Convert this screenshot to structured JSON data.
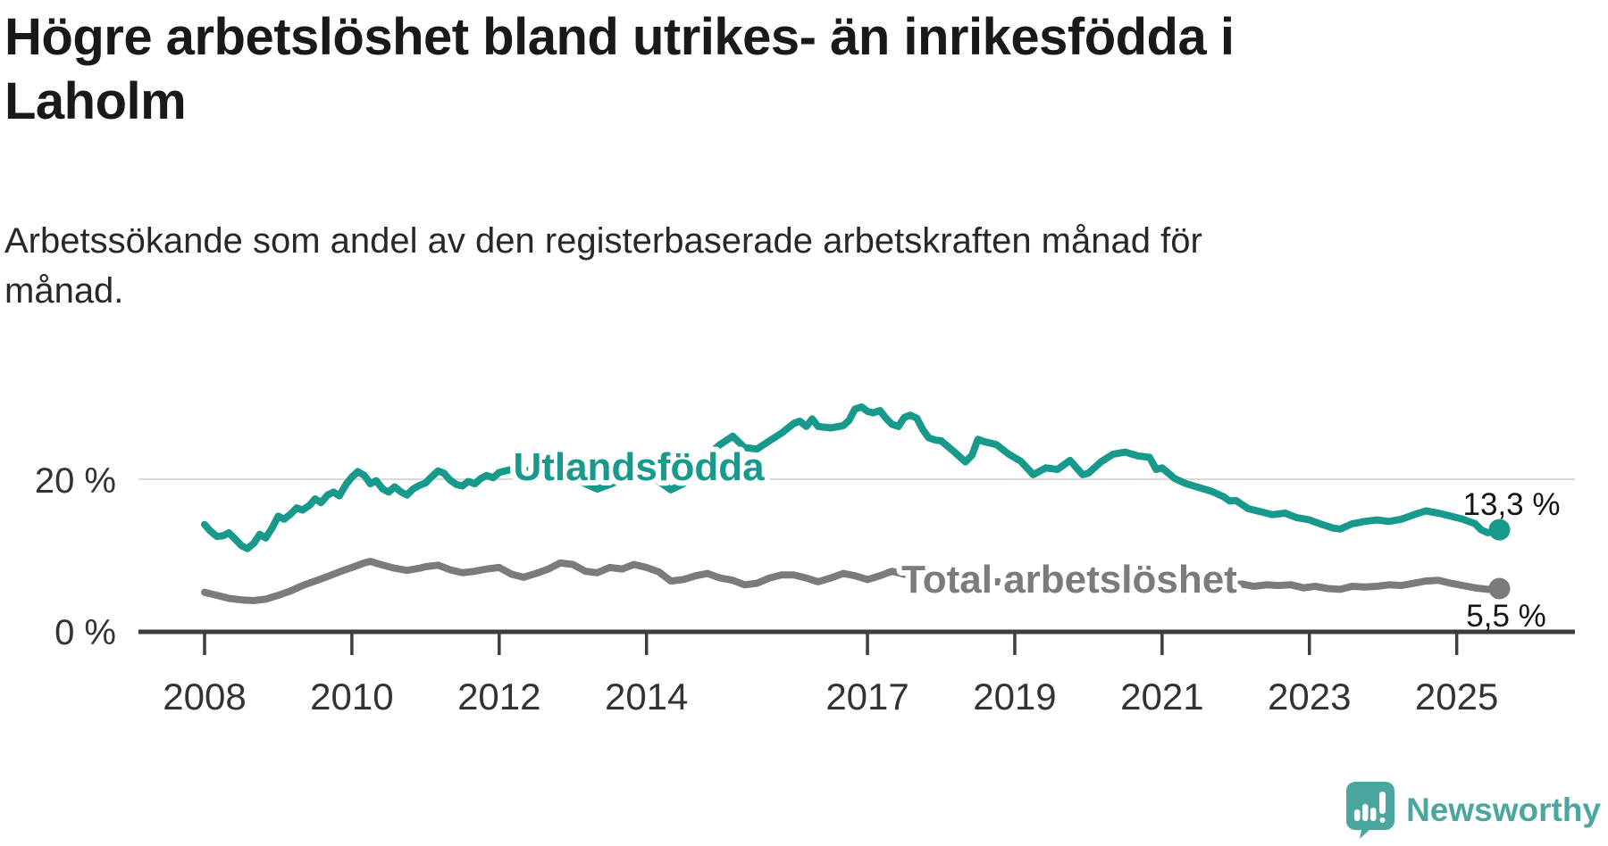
{
  "header": {
    "title_lines": [
      "Högre arbetslöshet bland utrikes- än inrikesfödda i",
      "Laholm"
    ],
    "subtitle_lines": [
      "Arbetssökande som andel av den registerbaserade arbetskraften månad för",
      "månad."
    ]
  },
  "chart_data": {
    "type": "line",
    "grid": "horizontal-20-only",
    "legend_position": "inline-labels-on-lines",
    "xlim": [
      2008,
      2026.1
    ],
    "ylim": [
      0,
      34
    ],
    "x_axis": {
      "ticks": [
        {
          "year": 2008,
          "label": "2008"
        },
        {
          "year": 2010,
          "label": "2010"
        },
        {
          "year": 2012,
          "label": "2012"
        },
        {
          "year": 2014,
          "label": "2014"
        },
        {
          "year": 2017,
          "label": "2017"
        },
        {
          "year": 2019,
          "label": "2019"
        },
        {
          "year": 2021,
          "label": "2021"
        },
        {
          "year": 2023,
          "label": "2023"
        },
        {
          "year": 2025,
          "label": "2025"
        }
      ]
    },
    "y_axis": {
      "unit": "percent",
      "ticks": [
        {
          "value": 0,
          "label": "0 %"
        },
        {
          "value": 20,
          "label": "20 %"
        }
      ]
    },
    "series": [
      {
        "name": "Utlandsfödda",
        "color": "#17998c",
        "end_value_label": "13,3 %",
        "points": [
          [
            2008.0,
            14.0
          ],
          [
            2008.08,
            13.1
          ],
          [
            2008.17,
            12.4
          ],
          [
            2008.25,
            12.5
          ],
          [
            2008.33,
            12.9
          ],
          [
            2008.42,
            12.0
          ],
          [
            2008.5,
            11.2
          ],
          [
            2008.58,
            10.8
          ],
          [
            2008.67,
            11.5
          ],
          [
            2008.75,
            12.7
          ],
          [
            2008.83,
            12.2
          ],
          [
            2008.92,
            13.6
          ],
          [
            2009.0,
            15.1
          ],
          [
            2009.08,
            14.7
          ],
          [
            2009.17,
            15.4
          ],
          [
            2009.25,
            16.2
          ],
          [
            2009.33,
            15.9
          ],
          [
            2009.42,
            16.5
          ],
          [
            2009.5,
            17.4
          ],
          [
            2009.58,
            16.9
          ],
          [
            2009.67,
            17.9
          ],
          [
            2009.75,
            18.3
          ],
          [
            2009.83,
            17.8
          ],
          [
            2009.92,
            19.3
          ],
          [
            2010.0,
            20.3
          ],
          [
            2010.08,
            21.0
          ],
          [
            2010.17,
            20.5
          ],
          [
            2010.25,
            19.4
          ],
          [
            2010.33,
            19.8
          ],
          [
            2010.42,
            18.7
          ],
          [
            2010.5,
            18.3
          ],
          [
            2010.58,
            19.0
          ],
          [
            2010.67,
            18.3
          ],
          [
            2010.75,
            17.9
          ],
          [
            2010.83,
            18.7
          ],
          [
            2010.92,
            19.2
          ],
          [
            2011.0,
            19.5
          ],
          [
            2011.08,
            20.3
          ],
          [
            2011.17,
            21.1
          ],
          [
            2011.25,
            20.8
          ],
          [
            2011.33,
            19.9
          ],
          [
            2011.42,
            19.3
          ],
          [
            2011.5,
            19.1
          ],
          [
            2011.58,
            19.7
          ],
          [
            2011.67,
            19.4
          ],
          [
            2011.75,
            20.1
          ],
          [
            2011.83,
            20.5
          ],
          [
            2011.92,
            20.2
          ],
          [
            2012.0,
            20.9
          ],
          [
            2012.17,
            21.3
          ],
          [
            2012.33,
            21.0
          ],
          [
            2012.5,
            21.5
          ],
          [
            2012.67,
            21.2
          ],
          [
            2012.83,
            20.6
          ],
          [
            2013.0,
            20.2
          ],
          [
            2013.17,
            19.4
          ],
          [
            2013.33,
            18.7
          ],
          [
            2013.5,
            19.3
          ],
          [
            2013.67,
            20.0
          ],
          [
            2013.83,
            20.5
          ],
          [
            2014.0,
            20.9
          ],
          [
            2014.17,
            19.7
          ],
          [
            2014.33,
            18.6
          ],
          [
            2014.5,
            19.4
          ],
          [
            2014.67,
            21.0
          ],
          [
            2014.83,
            23.2
          ],
          [
            2015.0,
            24.6
          ],
          [
            2015.17,
            25.7
          ],
          [
            2015.33,
            24.2
          ],
          [
            2015.5,
            24.0
          ],
          [
            2015.67,
            25.1
          ],
          [
            2015.83,
            26.1
          ],
          [
            2016.0,
            27.4
          ],
          [
            2016.08,
            27.7
          ],
          [
            2016.17,
            27.0
          ],
          [
            2016.25,
            28.0
          ],
          [
            2016.33,
            27.0
          ],
          [
            2016.5,
            26.8
          ],
          [
            2016.67,
            27.1
          ],
          [
            2016.75,
            27.8
          ],
          [
            2016.83,
            29.3
          ],
          [
            2016.92,
            29.6
          ],
          [
            2017.0,
            29.0
          ],
          [
            2017.08,
            28.8
          ],
          [
            2017.17,
            29.1
          ],
          [
            2017.25,
            28.1
          ],
          [
            2017.33,
            27.3
          ],
          [
            2017.42,
            27.0
          ],
          [
            2017.5,
            28.2
          ],
          [
            2017.58,
            28.5
          ],
          [
            2017.67,
            28.1
          ],
          [
            2017.75,
            26.6
          ],
          [
            2017.83,
            25.5
          ],
          [
            2017.92,
            25.2
          ],
          [
            2018.0,
            25.1
          ],
          [
            2018.17,
            23.7
          ],
          [
            2018.33,
            22.3
          ],
          [
            2018.42,
            23.2
          ],
          [
            2018.5,
            25.3
          ],
          [
            2018.58,
            25.0
          ],
          [
            2018.75,
            24.6
          ],
          [
            2018.92,
            23.3
          ],
          [
            2019.08,
            22.4
          ],
          [
            2019.25,
            20.6
          ],
          [
            2019.42,
            21.5
          ],
          [
            2019.58,
            21.3
          ],
          [
            2019.75,
            22.5
          ],
          [
            2019.92,
            20.6
          ],
          [
            2020.0,
            20.8
          ],
          [
            2020.17,
            22.3
          ],
          [
            2020.33,
            23.3
          ],
          [
            2020.5,
            23.6
          ],
          [
            2020.67,
            23.1
          ],
          [
            2020.83,
            22.9
          ],
          [
            2020.92,
            21.3
          ],
          [
            2021.0,
            21.5
          ],
          [
            2021.17,
            20.1
          ],
          [
            2021.33,
            19.4
          ],
          [
            2021.5,
            18.9
          ],
          [
            2021.67,
            18.4
          ],
          [
            2021.83,
            17.7
          ],
          [
            2021.92,
            17.1
          ],
          [
            2022.0,
            17.2
          ],
          [
            2022.17,
            16.1
          ],
          [
            2022.33,
            15.7
          ],
          [
            2022.5,
            15.3
          ],
          [
            2022.67,
            15.5
          ],
          [
            2022.83,
            14.9
          ],
          [
            2023.0,
            14.6
          ],
          [
            2023.17,
            14.0
          ],
          [
            2023.33,
            13.5
          ],
          [
            2023.42,
            13.4
          ],
          [
            2023.58,
            14.1
          ],
          [
            2023.75,
            14.4
          ],
          [
            2023.92,
            14.6
          ],
          [
            2024.08,
            14.4
          ],
          [
            2024.25,
            14.7
          ],
          [
            2024.42,
            15.3
          ],
          [
            2024.58,
            15.8
          ],
          [
            2024.75,
            15.5
          ],
          [
            2024.92,
            15.1
          ],
          [
            2025.08,
            14.7
          ],
          [
            2025.25,
            14.1
          ],
          [
            2025.33,
            13.3
          ],
          [
            2025.42,
            12.9
          ],
          [
            2025.58,
            13.3
          ]
        ]
      },
      {
        "name": "Total arbetslöshet",
        "color": "#7b7b7e",
        "end_value_label": "5,5 %",
        "points": [
          [
            2008.0,
            5.0
          ],
          [
            2008.17,
            4.6
          ],
          [
            2008.33,
            4.2
          ],
          [
            2008.5,
            4.0
          ],
          [
            2008.67,
            3.9
          ],
          [
            2008.83,
            4.1
          ],
          [
            2009.0,
            4.6
          ],
          [
            2009.17,
            5.2
          ],
          [
            2009.33,
            5.9
          ],
          [
            2009.5,
            6.5
          ],
          [
            2009.67,
            7.1
          ],
          [
            2009.83,
            7.7
          ],
          [
            2010.0,
            8.3
          ],
          [
            2010.17,
            8.9
          ],
          [
            2010.25,
            9.1
          ],
          [
            2010.42,
            8.6
          ],
          [
            2010.58,
            8.2
          ],
          [
            2010.75,
            7.9
          ],
          [
            2010.92,
            8.2
          ],
          [
            2011.0,
            8.4
          ],
          [
            2011.17,
            8.6
          ],
          [
            2011.33,
            8.0
          ],
          [
            2011.5,
            7.6
          ],
          [
            2011.67,
            7.8
          ],
          [
            2011.83,
            8.1
          ],
          [
            2012.0,
            8.3
          ],
          [
            2012.17,
            7.4
          ],
          [
            2012.33,
            7.0
          ],
          [
            2012.5,
            7.5
          ],
          [
            2012.67,
            8.1
          ],
          [
            2012.83,
            8.9
          ],
          [
            2013.0,
            8.7
          ],
          [
            2013.17,
            7.8
          ],
          [
            2013.33,
            7.6
          ],
          [
            2013.5,
            8.3
          ],
          [
            2013.67,
            8.1
          ],
          [
            2013.83,
            8.7
          ],
          [
            2014.0,
            8.3
          ],
          [
            2014.17,
            7.7
          ],
          [
            2014.33,
            6.5
          ],
          [
            2014.5,
            6.7
          ],
          [
            2014.67,
            7.2
          ],
          [
            2014.83,
            7.5
          ],
          [
            2015.0,
            6.9
          ],
          [
            2015.17,
            6.6
          ],
          [
            2015.33,
            6.0
          ],
          [
            2015.5,
            6.2
          ],
          [
            2015.67,
            6.9
          ],
          [
            2015.83,
            7.3
          ],
          [
            2016.0,
            7.3
          ],
          [
            2016.17,
            6.9
          ],
          [
            2016.33,
            6.4
          ],
          [
            2016.5,
            6.9
          ],
          [
            2016.67,
            7.5
          ],
          [
            2016.83,
            7.2
          ],
          [
            2017.0,
            6.7
          ],
          [
            2017.17,
            7.2
          ],
          [
            2017.33,
            7.8
          ],
          [
            2017.5,
            7.4
          ],
          [
            2017.67,
            7.1
          ],
          [
            2017.83,
            6.9
          ],
          [
            2018.0,
            6.7
          ],
          [
            2018.25,
            6.4
          ],
          [
            2018.5,
            6.2
          ],
          [
            2018.75,
            6.4
          ],
          [
            2019.0,
            6.3
          ],
          [
            2019.25,
            6.1
          ],
          [
            2019.5,
            6.3
          ],
          [
            2019.75,
            6.2
          ],
          [
            2020.0,
            6.4
          ],
          [
            2020.25,
            7.2
          ],
          [
            2020.5,
            7.8
          ],
          [
            2020.75,
            7.6
          ],
          [
            2021.0,
            7.4
          ],
          [
            2021.25,
            7.0
          ],
          [
            2021.5,
            6.6
          ],
          [
            2021.75,
            6.2
          ],
          [
            2021.92,
            6.0
          ],
          [
            2022.08,
            6.1
          ],
          [
            2022.25,
            5.8
          ],
          [
            2022.42,
            6.0
          ],
          [
            2022.58,
            5.9
          ],
          [
            2022.75,
            6.0
          ],
          [
            2022.92,
            5.6
          ],
          [
            2023.08,
            5.8
          ],
          [
            2023.25,
            5.5
          ],
          [
            2023.42,
            5.4
          ],
          [
            2023.58,
            5.8
          ],
          [
            2023.75,
            5.7
          ],
          [
            2023.92,
            5.8
          ],
          [
            2024.08,
            6.0
          ],
          [
            2024.25,
            5.9
          ],
          [
            2024.42,
            6.2
          ],
          [
            2024.58,
            6.5
          ],
          [
            2024.75,
            6.6
          ],
          [
            2024.92,
            6.2
          ],
          [
            2025.08,
            5.9
          ],
          [
            2025.25,
            5.6
          ],
          [
            2025.42,
            5.4
          ],
          [
            2025.58,
            5.5
          ]
        ]
      }
    ]
  },
  "branding": {
    "logo_text": "Newsworthy",
    "logo_color": "#4ba69f",
    "logo_icon": "newsworthy-speech-bubble-bar-chart-icon"
  },
  "colors": {
    "background": "#ffffff",
    "title": "#191919",
    "subtitle": "#282828",
    "axis": "#3d3d3d",
    "tick_label": "#333333",
    "gridline": "#d9d9d9",
    "data_label": "#141414",
    "series_teal": "#17998c",
    "series_gray": "#7b7b7e"
  }
}
